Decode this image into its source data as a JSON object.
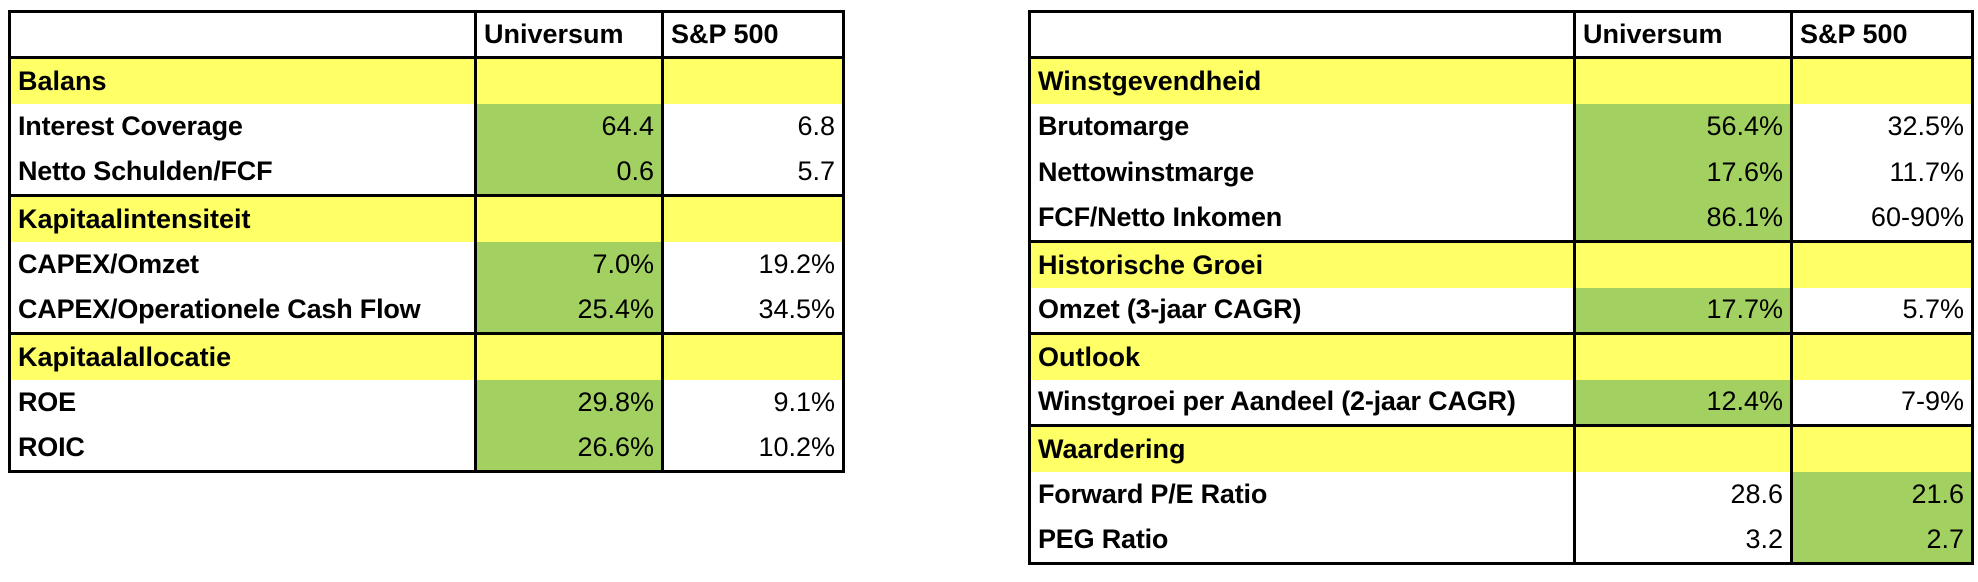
{
  "colors": {
    "section_fill": "#ffff66",
    "highlight_fill": "#a2d162",
    "border": "#000000"
  },
  "tables": {
    "left": {
      "columns": [
        "Universum",
        "S&P 500"
      ],
      "sections": [
        {
          "name": "Balans",
          "rows": [
            {
              "label": "Interest Coverage",
              "universum": "64.4",
              "sp500": "6.8",
              "highlight": "universum"
            },
            {
              "label": "Netto Schulden/FCF",
              "universum": "0.6",
              "sp500": "5.7",
              "highlight": "universum"
            }
          ]
        },
        {
          "name": "Kapitaalintensiteit",
          "rows": [
            {
              "label": "CAPEX/Omzet",
              "universum": "7.0%",
              "sp500": "19.2%",
              "highlight": "universum"
            },
            {
              "label": "CAPEX/Operationele Cash Flow",
              "universum": "25.4%",
              "sp500": "34.5%",
              "highlight": "universum"
            }
          ]
        },
        {
          "name": "Kapitaalallocatie",
          "rows": [
            {
              "label": "ROE",
              "universum": "29.8%",
              "sp500": "9.1%",
              "highlight": "universum"
            },
            {
              "label": "ROIC",
              "universum": "26.6%",
              "sp500": "10.2%",
              "highlight": "universum"
            }
          ]
        }
      ]
    },
    "right": {
      "columns": [
        "Universum",
        "S&P 500"
      ],
      "sections": [
        {
          "name": "Winstgevendheid",
          "rows": [
            {
              "label": "Brutomarge",
              "universum": "56.4%",
              "sp500": "32.5%",
              "highlight": "universum"
            },
            {
              "label": "Nettowinstmarge",
              "universum": "17.6%",
              "sp500": "11.7%",
              "highlight": "universum"
            },
            {
              "label": "FCF/Netto Inkomen",
              "universum": "86.1%",
              "sp500": "60-90%",
              "highlight": "universum"
            }
          ]
        },
        {
          "name": "Historische Groei",
          "rows": [
            {
              "label": "Omzet (3-jaar CAGR)",
              "universum": "17.7%",
              "sp500": "5.7%",
              "highlight": "universum"
            }
          ]
        },
        {
          "name": "Outlook",
          "rows": [
            {
              "label": "Winstgroei per Aandeel (2-jaar CAGR)",
              "universum": "12.4%",
              "sp500": "7-9%",
              "highlight": "universum"
            }
          ]
        },
        {
          "name": "Waardering",
          "rows": [
            {
              "label": "Forward P/E Ratio",
              "universum": "28.6",
              "sp500": "21.6",
              "highlight": "sp500"
            },
            {
              "label": "PEG Ratio",
              "universum": "3.2",
              "sp500": "2.7",
              "highlight": "sp500"
            }
          ]
        }
      ]
    }
  }
}
